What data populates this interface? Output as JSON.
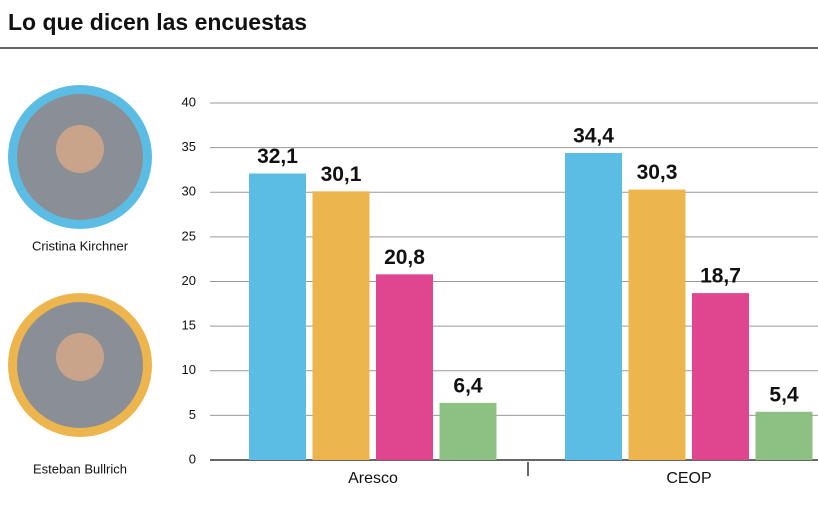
{
  "chart_data": {
    "type": "bar",
    "title": "Lo que dicen las encuestas",
    "categories": [
      "Aresco",
      "CEOP"
    ],
    "series": [
      {
        "name": "Cristina Kirchner",
        "color": "#5bbde4",
        "values": [
          32.1,
          34.4
        ],
        "value_labels": [
          "32,1",
          "34,4"
        ]
      },
      {
        "name": "Esteban Bullrich",
        "color": "#ecb54e",
        "values": [
          30.1,
          30.3
        ],
        "value_labels": [
          "30,1",
          "30,3"
        ]
      },
      {
        "color": "#e0468f",
        "values": [
          20.8,
          18.7
        ],
        "value_labels": [
          "20,8",
          "18,7"
        ]
      },
      {
        "color": "#8dc183",
        "values": [
          6.4,
          5.4
        ],
        "value_labels": [
          "6,4",
          "5,4"
        ]
      }
    ],
    "ylim": [
      0,
      40
    ],
    "yticks": [
      0,
      5,
      10,
      15,
      20,
      25,
      30,
      35,
      40
    ],
    "grid": true
  }
}
